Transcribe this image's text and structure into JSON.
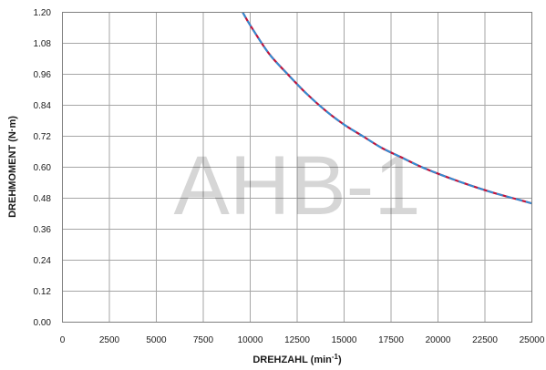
{
  "chart_data": {
    "type": "line",
    "xlabel": "DREHZAHL (min⁻¹)",
    "ylabel": "DREHMOMENT (N·m)",
    "watermark": "AHB-1",
    "xlim": [
      0,
      25000
    ],
    "ylim": [
      0,
      1.2
    ],
    "x_ticks": [
      "0",
      "2500",
      "5000",
      "7500",
      "10000",
      "12500",
      "15000",
      "17500",
      "20000",
      "22500",
      "25000"
    ],
    "y_ticks": [
      "0.00",
      "0.12",
      "0.24",
      "0.36",
      "0.48",
      "0.60",
      "0.72",
      "0.84",
      "0.96",
      "1.08",
      "1.20"
    ],
    "grid": true,
    "series": [
      {
        "color": "#c0143c",
        "style": "solid",
        "x": [
          9600,
          10000,
          11000,
          12000,
          13000,
          14000,
          15000,
          16000,
          17000,
          18000,
          19000,
          20000,
          21000,
          22000,
          23000,
          24000,
          25000
        ],
        "y": [
          1.2,
          1.15,
          1.04,
          0.96,
          0.885,
          0.82,
          0.765,
          0.72,
          0.675,
          0.64,
          0.605,
          0.575,
          0.548,
          0.523,
          0.5,
          0.48,
          0.46
        ]
      },
      {
        "color": "#2e8fd6",
        "style": "dashed",
        "x": [
          9600,
          10000,
          11000,
          12000,
          13000,
          14000,
          15000,
          16000,
          17000,
          18000,
          19000,
          20000,
          21000,
          22000,
          23000,
          24000,
          25000
        ],
        "y": [
          1.2,
          1.15,
          1.04,
          0.96,
          0.885,
          0.82,
          0.765,
          0.72,
          0.675,
          0.64,
          0.605,
          0.575,
          0.548,
          0.523,
          0.5,
          0.48,
          0.46
        ]
      }
    ]
  }
}
